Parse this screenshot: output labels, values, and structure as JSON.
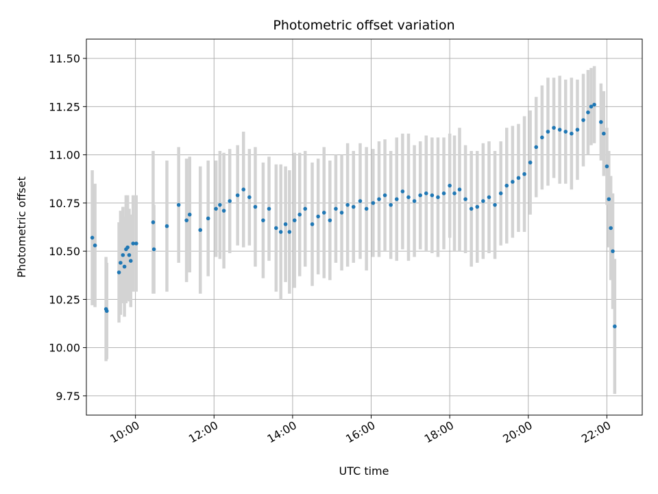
{
  "chart_data": {
    "type": "scatter",
    "title": "Photometric offset variation",
    "xlabel": "UTC time",
    "ylabel": "Photometric offset",
    "x_unit": "hours",
    "xlim": [
      8.75,
      22.9
    ],
    "ylim": [
      9.65,
      11.6
    ],
    "x_ticks": [
      {
        "value": 10,
        "label": "10:00"
      },
      {
        "value": 12,
        "label": "12:00"
      },
      {
        "value": 14,
        "label": "14:00"
      },
      {
        "value": 16,
        "label": "16:00"
      },
      {
        "value": 18,
        "label": "18:00"
      },
      {
        "value": 20,
        "label": "20:00"
      },
      {
        "value": 22,
        "label": "22:00"
      }
    ],
    "y_ticks": [
      {
        "value": 9.75,
        "label": "9.75"
      },
      {
        "value": 10.0,
        "label": "10.00"
      },
      {
        "value": 10.25,
        "label": "10.25"
      },
      {
        "value": 10.5,
        "label": "10.50"
      },
      {
        "value": 10.75,
        "label": "10.75"
      },
      {
        "value": 11.0,
        "label": "11.00"
      },
      {
        "value": 11.25,
        "label": "11.25"
      },
      {
        "value": 11.5,
        "label": "11.50"
      }
    ],
    "grid": true,
    "marker_color": "#1f77b4",
    "errorbar_color": "#d3d3d3",
    "series": [
      {
        "x": [
          8.9,
          8.97,
          9.25,
          9.27,
          9.58,
          9.62,
          9.68,
          9.72,
          9.76,
          9.8,
          9.84,
          9.88,
          9.94,
          10.02,
          10.45,
          10.47,
          10.8,
          11.1,
          11.3,
          11.38,
          11.65,
          11.85,
          12.05,
          12.15,
          12.25,
          12.4,
          12.6,
          12.75,
          12.9,
          13.05,
          13.25,
          13.4,
          13.58,
          13.7,
          13.82,
          13.92,
          14.05,
          14.18,
          14.32,
          14.5,
          14.65,
          14.8,
          14.95,
          15.1,
          15.25,
          15.4,
          15.55,
          15.72,
          15.88,
          16.05,
          16.2,
          16.35,
          16.5,
          16.65,
          16.8,
          16.95,
          17.1,
          17.25,
          17.4,
          17.55,
          17.7,
          17.85,
          18.0,
          18.12,
          18.25,
          18.4,
          18.55,
          18.7,
          18.85,
          19.0,
          19.15,
          19.3,
          19.45,
          19.6,
          19.75,
          19.9,
          20.05,
          20.2,
          20.35,
          20.5,
          20.65,
          20.8,
          20.95,
          21.1,
          21.25,
          21.4,
          21.52,
          21.6,
          21.68,
          21.85,
          21.92,
          22.0,
          22.05,
          22.1,
          22.15,
          22.2
        ],
        "y": [
          10.57,
          10.53,
          10.2,
          10.19,
          10.39,
          10.44,
          10.48,
          10.42,
          10.51,
          10.52,
          10.48,
          10.45,
          10.54,
          10.54,
          10.65,
          10.51,
          10.63,
          10.74,
          10.66,
          10.69,
          10.61,
          10.67,
          10.72,
          10.74,
          10.71,
          10.76,
          10.79,
          10.82,
          10.78,
          10.73,
          10.66,
          10.72,
          10.62,
          10.6,
          10.64,
          10.6,
          10.66,
          10.69,
          10.72,
          10.64,
          10.68,
          10.7,
          10.66,
          10.72,
          10.7,
          10.74,
          10.73,
          10.76,
          10.72,
          10.75,
          10.77,
          10.79,
          10.74,
          10.77,
          10.81,
          10.78,
          10.76,
          10.79,
          10.8,
          10.79,
          10.78,
          10.8,
          10.84,
          10.8,
          10.82,
          10.77,
          10.72,
          10.73,
          10.76,
          10.78,
          10.74,
          10.8,
          10.84,
          10.86,
          10.88,
          10.9,
          10.96,
          11.04,
          11.09,
          11.12,
          11.14,
          11.13,
          11.12,
          11.11,
          11.13,
          11.18,
          11.22,
          11.25,
          11.26,
          11.17,
          11.11,
          10.94,
          10.77,
          10.62,
          10.5,
          10.11
        ],
        "err": [
          0.35,
          0.32,
          0.27,
          0.25,
          0.26,
          0.27,
          0.25,
          0.26,
          0.28,
          0.27,
          0.24,
          0.24,
          0.25,
          0.25,
          0.37,
          0.23,
          0.34,
          0.3,
          0.32,
          0.3,
          0.33,
          0.3,
          0.25,
          0.28,
          0.3,
          0.27,
          0.26,
          0.3,
          0.25,
          0.31,
          0.3,
          0.27,
          0.33,
          0.35,
          0.3,
          0.32,
          0.35,
          0.32,
          0.3,
          0.32,
          0.3,
          0.34,
          0.31,
          0.28,
          0.3,
          0.32,
          0.29,
          0.3,
          0.32,
          0.28,
          0.3,
          0.29,
          0.28,
          0.32,
          0.3,
          0.33,
          0.29,
          0.28,
          0.3,
          0.3,
          0.31,
          0.29,
          0.27,
          0.3,
          0.32,
          0.28,
          0.3,
          0.29,
          0.3,
          0.29,
          0.28,
          0.27,
          0.3,
          0.29,
          0.28,
          0.3,
          0.27,
          0.26,
          0.27,
          0.28,
          0.26,
          0.28,
          0.27,
          0.29,
          0.26,
          0.24,
          0.22,
          0.2,
          0.2,
          0.2,
          0.22,
          0.2,
          0.25,
          0.27,
          0.3,
          0.35
        ]
      }
    ]
  }
}
